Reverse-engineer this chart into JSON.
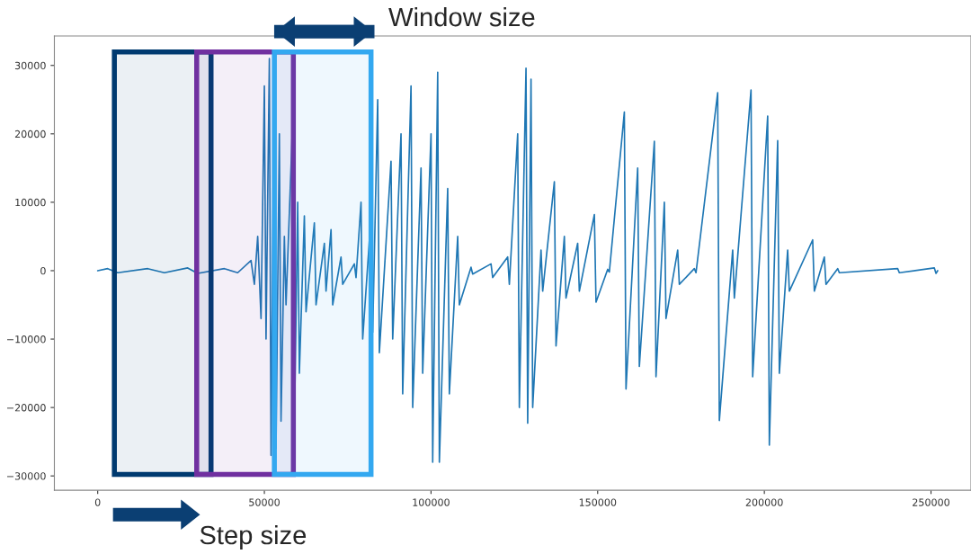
{
  "chart_data": {
    "type": "line",
    "x": [
      0,
      3000,
      6000,
      15000,
      20000,
      27000,
      30000,
      38000,
      42000,
      46000,
      47000,
      48000,
      49000,
      50000,
      50500,
      51500,
      52000,
      53000,
      53500,
      54500,
      55000,
      56000,
      56500,
      58500,
      59000,
      60000,
      60500,
      62000,
      62500,
      65000,
      65500,
      68000,
      68500,
      70000,
      70500,
      73000,
      73500,
      77000,
      77500,
      79000,
      79500,
      82000,
      82500,
      84000,
      84500,
      88000,
      88500,
      91000,
      91500,
      94000,
      94500,
      97000,
      97500,
      100000,
      100500,
      102000,
      102500,
      105000,
      105500,
      108000,
      108500,
      112000,
      112500,
      118000,
      118500,
      123000,
      123500,
      126000,
      126500,
      128500,
      129000,
      130000,
      130500,
      133000,
      133500,
      137000,
      137500,
      140000,
      140500,
      144000,
      144500,
      149000,
      149500,
      153000,
      153500,
      158000,
      158500,
      162000,
      162500,
      167000,
      167500,
      170000,
      170500,
      174000,
      174500,
      179000,
      179500,
      186000,
      186500,
      190500,
      191000,
      196000,
      196500,
      201000,
      201500,
      204000,
      204500,
      207000,
      207500,
      214500,
      215000,
      218000,
      218500,
      222000,
      222500,
      240000,
      240500,
      251000,
      251500,
      252000
    ],
    "series": [
      {
        "color": "#1f77b4",
        "values": [
          0,
          300,
          -300,
          300,
          -300,
          400,
          -400,
          300,
          -300,
          1500,
          -2000,
          5000,
          -7000,
          27000,
          -10000,
          31000,
          -27000,
          30000,
          -26000,
          20000,
          -22000,
          5000,
          -5000,
          22000,
          -23500,
          10000,
          -15000,
          8000,
          -6000,
          7000,
          -5000,
          4000,
          -3000,
          6000,
          -5000,
          2000,
          -2000,
          1000,
          -1000,
          10000,
          -10000,
          8000,
          -9000,
          25000,
          -12000,
          16000,
          -10000,
          20000,
          -18000,
          27000,
          -20000,
          15000,
          -15000,
          20000,
          -28000,
          29000,
          -28000,
          12000,
          -18000,
          5000,
          -5000,
          500,
          -500,
          1000,
          -1000,
          2000,
          -2000,
          20000,
          -20000,
          29600,
          -22300,
          28000,
          -20000,
          3000,
          -3000,
          13000,
          -11000,
          5000,
          -4000,
          4000,
          -3000,
          8200,
          -4600,
          200,
          -200,
          23200,
          -17300,
          15000,
          -14000,
          18900,
          -15500,
          10000,
          -7000,
          3000,
          -2000,
          300,
          -300,
          26000,
          -21900,
          3000,
          -4000,
          26400,
          -15500,
          22600,
          -25500,
          19000,
          -15000,
          3000,
          -3000,
          4500,
          -3000,
          2000,
          -2000,
          300,
          -300,
          300,
          -300,
          400,
          -400,
          0
        ]
      }
    ],
    "xlim": [
      -13000,
      262000
    ],
    "ylim": [
      -32100,
      34300
    ],
    "xticks": [
      0,
      50000,
      100000,
      150000,
      200000,
      250000
    ],
    "yticks": [
      {
        "value": -30000,
        "label": "−30000"
      },
      {
        "value": -20000,
        "label": "−20000"
      },
      {
        "value": -10000,
        "label": "−10000"
      },
      0,
      10000,
      20000,
      30000
    ],
    "bands": [
      {
        "axis": "x",
        "from": 5000,
        "to": 34000,
        "color": "#003a70"
      },
      {
        "axis": "x",
        "from": 29700,
        "to": 58700,
        "color": "#7030a0"
      },
      {
        "axis": "x",
        "from": 53000,
        "to": 82000,
        "color": "#33a8f0"
      }
    ],
    "annotations": [
      "Window size",
      "Step size"
    ],
    "grid": false
  }
}
